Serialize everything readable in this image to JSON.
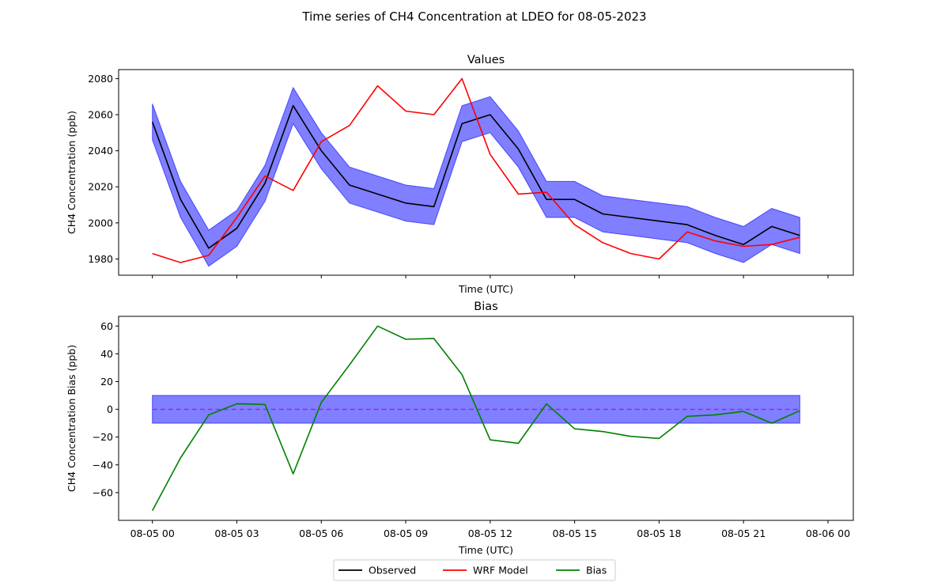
{
  "figure_title": "Time series of CH4 Concentration at LDEO for 08-05-2023",
  "legend": {
    "entries": [
      {
        "label": "Observed",
        "color": "#000000"
      },
      {
        "label": "WRF Model",
        "color": "#ff0000"
      },
      {
        "label": "Bias",
        "color": "#008000"
      }
    ],
    "placement": "bottom-center"
  },
  "chart_data": [
    {
      "type": "line",
      "title": "Values",
      "xlabel": "Time (UTC)",
      "ylabel": "CH4 Concentration (ppb)",
      "x_hours": [
        0,
        1,
        2,
        3,
        4,
        5,
        6,
        7,
        8,
        9,
        10,
        11,
        12,
        13,
        14,
        15,
        16,
        17,
        18,
        19,
        20,
        21,
        22,
        23
      ],
      "xlim": [
        -1.2,
        24.9
      ],
      "ylim": [
        1971,
        2085
      ],
      "yticks": [
        1980,
        2000,
        2020,
        2040,
        2060,
        2080
      ],
      "xticks_hours": [
        0,
        3,
        6,
        9,
        12,
        15,
        18,
        21,
        24
      ],
      "xtick_labels": [
        "",
        "",
        "",
        "",
        "",
        "",
        "",
        "",
        ""
      ],
      "band": {
        "color": "#0000ff",
        "opacity": 0.5,
        "halfwidth": 10
      },
      "series": [
        {
          "name": "Observed",
          "color": "#000000",
          "values": [
            2056,
            2013,
            1986,
            1997,
            2022,
            2065,
            2040,
            2021,
            2016,
            2011,
            2009,
            2055,
            2060,
            2041,
            2013,
            2013,
            2005,
            2003,
            2001,
            1999,
            1993,
            1988,
            1998,
            1993
          ]
        },
        {
          "name": "WRF Model",
          "color": "#ff0000",
          "values": [
            1983,
            1978,
            1982,
            2003,
            2026,
            2018,
            2045,
            2054,
            2076,
            2062,
            2060,
            2080,
            2038,
            2016,
            2017,
            1999,
            1989,
            1983,
            1980,
            1995,
            1990,
            1987,
            1988,
            1992
          ]
        }
      ],
      "grid": false
    },
    {
      "type": "line",
      "title": "Bias",
      "xlabel": "Time (UTC)",
      "ylabel": "CH4 Concentration Bias (ppb)",
      "x_hours": [
        0,
        1,
        2,
        3,
        4,
        5,
        6,
        7,
        8,
        9,
        10,
        11,
        12,
        13,
        14,
        15,
        16,
        17,
        18,
        19,
        20,
        21,
        22,
        23
      ],
      "xlim": [
        -1.2,
        24.9
      ],
      "ylim": [
        -80,
        67
      ],
      "yticks": [
        -60,
        -40,
        -20,
        0,
        20,
        40,
        60
      ],
      "xticks_hours": [
        0,
        3,
        6,
        9,
        12,
        15,
        18,
        21,
        24
      ],
      "xtick_labels": [
        "08-05 00",
        "08-05 03",
        "08-05 06",
        "08-05 09",
        "08-05 12",
        "08-05 15",
        "08-05 18",
        "08-05 21",
        "08-06 00"
      ],
      "band": {
        "color": "#0000ff",
        "opacity": 0.5,
        "low": -10,
        "high": 10
      },
      "zero_line": {
        "value": 0,
        "color": "#a020f0",
        "dashed": true
      },
      "series": [
        {
          "name": "Bias",
          "color": "#008000",
          "values": [
            -73,
            -35,
            -4,
            4,
            3.5,
            -46.5,
            5,
            32,
            60,
            50.5,
            51,
            25,
            -22,
            -24.5,
            4,
            -14,
            -16,
            -19.5,
            -21,
            -5,
            -4,
            -1.5,
            -10,
            -1
          ]
        }
      ],
      "grid": false
    }
  ]
}
